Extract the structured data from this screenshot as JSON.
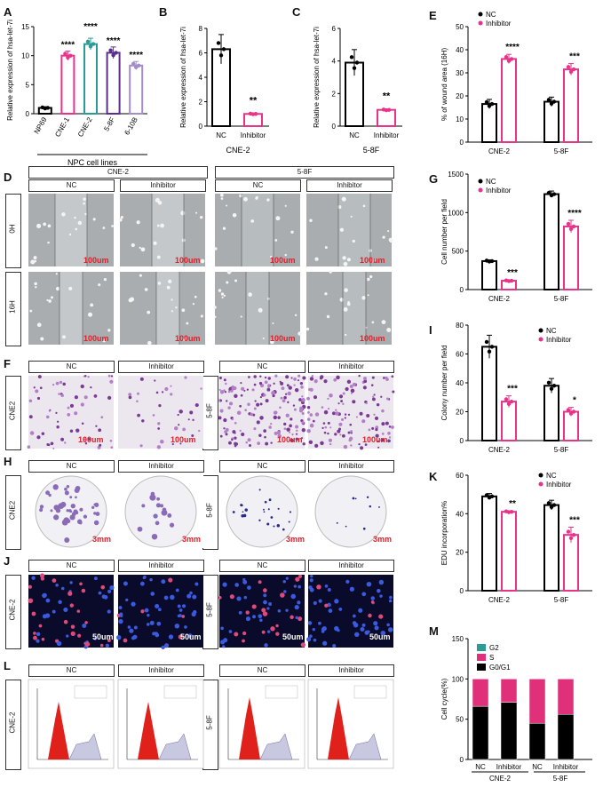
{
  "panels": {
    "A": {
      "label": "A",
      "ylabel": "Relative expression of hsa-let-7i",
      "xlabel": "NPC cell lines"
    },
    "B": {
      "label": "B",
      "ylabel": "Relative expression of hsa-let-7i",
      "caption": "CNE-2"
    },
    "C": {
      "label": "C",
      "ylabel": "Relative expression of hsa-let-7i",
      "caption": "5-8F"
    },
    "D": {
      "label": "D",
      "group1": "CNE-2",
      "group2": "5-8F",
      "nc": "NC",
      "inhibitor": "Inhibitor",
      "row1": "0H",
      "row2": "16H",
      "scale": "100um"
    },
    "E": {
      "label": "E",
      "ylabel": "% of wound area (16H)"
    },
    "F": {
      "label": "F",
      "row1": "CNE2",
      "row2": "5-8F",
      "nc": "NC",
      "inhibitor": "Inhibitor",
      "scale": "100um"
    },
    "G": {
      "label": "G",
      "ylabel": "Cell number per field"
    },
    "H": {
      "label": "H",
      "row1": "CNE2",
      "row2": "5-8F",
      "nc": "NC",
      "inhibitor": "Inhibitor",
      "scale": "3mm"
    },
    "I": {
      "label": "I",
      "ylabel": "Colony number per field"
    },
    "J": {
      "label": "J",
      "row1": "CNE-2",
      "row2": "5-8F",
      "nc": "NC",
      "inhibitor": "Inhibitor",
      "scale": "50um"
    },
    "K": {
      "label": "K",
      "ylabel": "EDU incorporation%"
    },
    "L": {
      "label": "L",
      "row1": "CNE-2",
      "row2": "5-8F",
      "nc": "NC",
      "inhibitor": "Inhibitor"
    },
    "M": {
      "label": "M",
      "ylabel": "Cell cycle(%)"
    }
  },
  "colors": {
    "nc": "#000000",
    "inhibitor": "#e8338a",
    "teal": "#2a9c96",
    "purple": "#5b2d8e",
    "lavender": "#a48ccd",
    "red": "#e0202a"
  },
  "chart_data": [
    {
      "id": "A",
      "type": "bar",
      "categories": [
        "NP69",
        "CNE-1",
        "CNE-2",
        "5-8F",
        "6-10B"
      ],
      "values": [
        1,
        10,
        12,
        10.5,
        8.3
      ],
      "errors": [
        0.2,
        0.8,
        1.0,
        1.0,
        0.7
      ],
      "sig": [
        "",
        "****",
        "****",
        "****",
        "****"
      ],
      "ylim": [
        0,
        15
      ],
      "yticks": [
        0,
        5,
        10,
        15
      ]
    },
    {
      "id": "B",
      "type": "bar",
      "categories": [
        "NC",
        "Inhibitor"
      ],
      "values": [
        6.3,
        1.0
      ],
      "errors": [
        1.2,
        0.05
      ],
      "sig": [
        "",
        "**"
      ],
      "ylim": [
        0,
        8
      ],
      "yticks": [
        0,
        2,
        4,
        6,
        8
      ]
    },
    {
      "id": "C",
      "type": "bar",
      "categories": [
        "NC",
        "Inhibitor"
      ],
      "values": [
        3.9,
        1.0
      ],
      "errors": [
        0.8,
        0.05
      ],
      "sig": [
        "",
        "**"
      ],
      "ylim": [
        0,
        6
      ],
      "yticks": [
        0,
        2,
        4,
        6
      ]
    },
    {
      "id": "E",
      "type": "bar",
      "categories": [
        "CNE-2",
        "5-8F"
      ],
      "legend": [
        "NC",
        "Inhibitor"
      ],
      "series": [
        {
          "name": "NC",
          "values": [
            16.5,
            17.5
          ],
          "errors": [
            2.0,
            2.0
          ]
        },
        {
          "name": "Inhibitor",
          "values": [
            36,
            31.5
          ],
          "errors": [
            2.0,
            2.5
          ]
        }
      ],
      "sig": [
        "****",
        "***"
      ],
      "ylim": [
        0,
        50
      ],
      "yticks": [
        0,
        10,
        20,
        30,
        40,
        50
      ]
    },
    {
      "id": "G",
      "type": "bar",
      "categories": [
        "CNE-2",
        "5-8F"
      ],
      "legend": [
        "NC",
        "Inhibitor"
      ],
      "series": [
        {
          "name": "NC",
          "values": [
            370,
            1240
          ],
          "errors": [
            15,
            40
          ]
        },
        {
          "name": "Inhibitor",
          "values": [
            115,
            820
          ],
          "errors": [
            10,
            80
          ]
        }
      ],
      "sig": [
        "***",
        "****"
      ],
      "ylim": [
        0,
        1500
      ],
      "yticks": [
        0,
        500,
        1000,
        1500
      ]
    },
    {
      "id": "I",
      "type": "bar",
      "categories": [
        "CNE-2",
        "5-8F"
      ],
      "legend": [
        "NC",
        "Inhibitor"
      ],
      "series": [
        {
          "name": "NC",
          "values": [
            65,
            38
          ],
          "errors": [
            8,
            5
          ]
        },
        {
          "name": "Inhibitor",
          "values": [
            27,
            20
          ],
          "errors": [
            4,
            3
          ]
        }
      ],
      "sig": [
        "***",
        "*"
      ],
      "ylim": [
        0,
        80
      ],
      "yticks": [
        0,
        20,
        40,
        60,
        80
      ]
    },
    {
      "id": "K",
      "type": "bar",
      "categories": [
        "CNE-2",
        "5-8F"
      ],
      "legend": [
        "NC",
        "Inhibitor"
      ],
      "series": [
        {
          "name": "NC",
          "values": [
            49,
            44.5
          ],
          "errors": [
            1.5,
            2.5
          ]
        },
        {
          "name": "Inhibitor",
          "values": [
            41,
            29
          ],
          "errors": [
            0.5,
            4
          ]
        }
      ],
      "sig": [
        "**",
        "***"
      ],
      "ylim": [
        0,
        60
      ],
      "yticks": [
        0,
        20,
        40,
        60
      ]
    },
    {
      "id": "M",
      "type": "stacked-bar",
      "categories": [
        "NC",
        "Inhibitor",
        "NC",
        "Inhibitor"
      ],
      "groups": [
        "CNE-2",
        "5-8F"
      ],
      "legend": [
        "G2",
        "S",
        "G0/G1"
      ],
      "series": [
        {
          "name": "G0/G1",
          "values": [
            66,
            71,
            45,
            56
          ]
        },
        {
          "name": "S",
          "values": [
            34,
            29,
            55,
            44
          ]
        },
        {
          "name": "G2",
          "values": [
            0,
            0,
            0,
            0
          ]
        }
      ],
      "ylim": [
        0,
        150
      ],
      "yticks": [
        0,
        50,
        100,
        150
      ]
    }
  ]
}
